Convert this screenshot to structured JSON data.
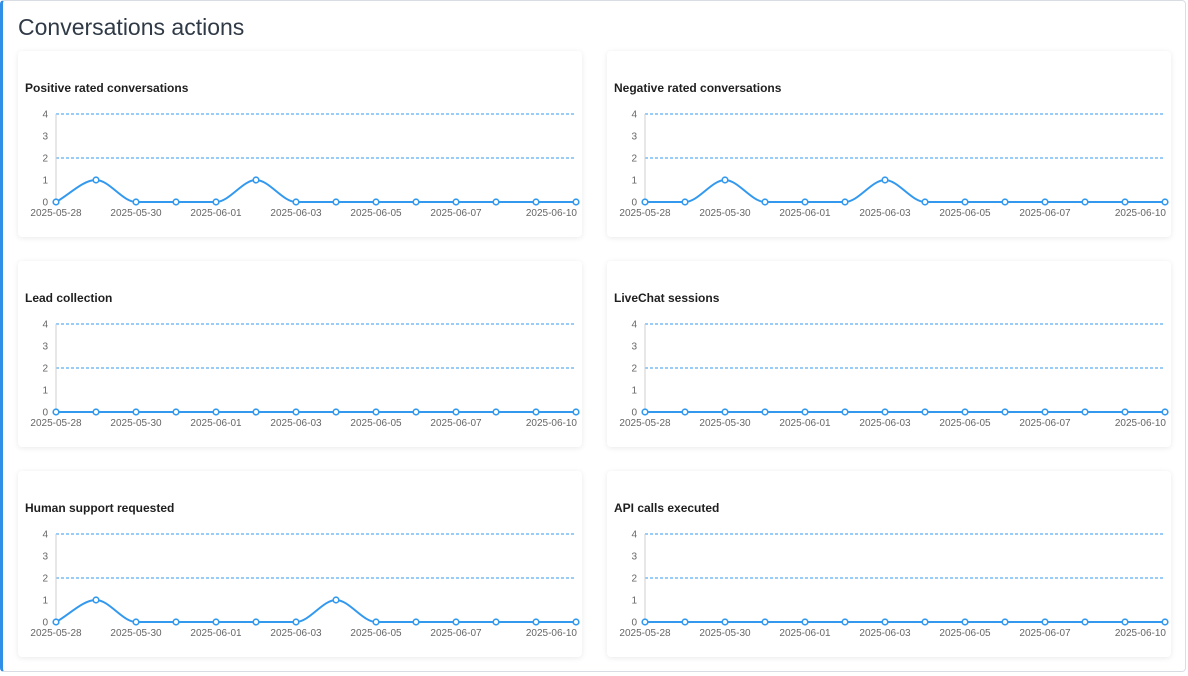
{
  "page": {
    "title": "Conversations actions"
  },
  "colors": {
    "accent": "#2f8fe6",
    "line": "#3399ee",
    "grid": "#3399ee"
  },
  "chart_data": [
    {
      "type": "line",
      "title": "Positive rated conversations",
      "x": [
        "2025-05-28",
        "2025-05-29",
        "2025-05-30",
        "2025-05-31",
        "2025-06-01",
        "2025-06-02",
        "2025-06-03",
        "2025-06-04",
        "2025-06-05",
        "2025-06-06",
        "2025-06-07",
        "2025-06-08",
        "2025-06-09",
        "2025-06-10"
      ],
      "x_tick_labels": [
        "2025-05-28",
        "2025-05-30",
        "2025-06-01",
        "2025-06-03",
        "2025-06-05",
        "2025-06-07",
        "2025-06-10"
      ],
      "y_ticks": [
        0,
        1,
        2,
        3,
        4
      ],
      "ylim": [
        0,
        4
      ],
      "gridlines_y": [
        2,
        4
      ],
      "values": [
        0,
        1,
        0,
        0,
        0,
        1,
        0,
        0,
        0,
        0,
        0,
        0,
        0,
        0
      ]
    },
    {
      "type": "line",
      "title": "Negative rated conversations",
      "x": [
        "2025-05-28",
        "2025-05-29",
        "2025-05-30",
        "2025-05-31",
        "2025-06-01",
        "2025-06-02",
        "2025-06-03",
        "2025-06-04",
        "2025-06-05",
        "2025-06-06",
        "2025-06-07",
        "2025-06-08",
        "2025-06-09",
        "2025-06-10"
      ],
      "x_tick_labels": [
        "2025-05-28",
        "2025-05-30",
        "2025-06-01",
        "2025-06-03",
        "2025-06-05",
        "2025-06-07",
        "2025-06-10"
      ],
      "y_ticks": [
        0,
        1,
        2,
        3,
        4
      ],
      "ylim": [
        0,
        4
      ],
      "gridlines_y": [
        2,
        4
      ],
      "values": [
        0,
        0,
        1,
        0,
        0,
        0,
        1,
        0,
        0,
        0,
        0,
        0,
        0,
        0
      ]
    },
    {
      "type": "line",
      "title": "Lead collection",
      "x": [
        "2025-05-28",
        "2025-05-29",
        "2025-05-30",
        "2025-05-31",
        "2025-06-01",
        "2025-06-02",
        "2025-06-03",
        "2025-06-04",
        "2025-06-05",
        "2025-06-06",
        "2025-06-07",
        "2025-06-08",
        "2025-06-09",
        "2025-06-10"
      ],
      "x_tick_labels": [
        "2025-05-28",
        "2025-05-30",
        "2025-06-01",
        "2025-06-03",
        "2025-06-05",
        "2025-06-07",
        "2025-06-10"
      ],
      "y_ticks": [
        0,
        1,
        2,
        3,
        4
      ],
      "ylim": [
        0,
        4
      ],
      "gridlines_y": [
        2,
        4
      ],
      "values": [
        0,
        0,
        0,
        0,
        0,
        0,
        0,
        0,
        0,
        0,
        0,
        0,
        0,
        0
      ]
    },
    {
      "type": "line",
      "title": "LiveChat sessions",
      "x": [
        "2025-05-28",
        "2025-05-29",
        "2025-05-30",
        "2025-05-31",
        "2025-06-01",
        "2025-06-02",
        "2025-06-03",
        "2025-06-04",
        "2025-06-05",
        "2025-06-06",
        "2025-06-07",
        "2025-06-08",
        "2025-06-09",
        "2025-06-10"
      ],
      "x_tick_labels": [
        "2025-05-28",
        "2025-05-30",
        "2025-06-01",
        "2025-06-03",
        "2025-06-05",
        "2025-06-07",
        "2025-06-10"
      ],
      "y_ticks": [
        0,
        1,
        2,
        3,
        4
      ],
      "ylim": [
        0,
        4
      ],
      "gridlines_y": [
        2,
        4
      ],
      "values": [
        0,
        0,
        0,
        0,
        0,
        0,
        0,
        0,
        0,
        0,
        0,
        0,
        0,
        0
      ]
    },
    {
      "type": "line",
      "title": "Human support requested",
      "x": [
        "2025-05-28",
        "2025-05-29",
        "2025-05-30",
        "2025-05-31",
        "2025-06-01",
        "2025-06-02",
        "2025-06-03",
        "2025-06-04",
        "2025-06-05",
        "2025-06-06",
        "2025-06-07",
        "2025-06-08",
        "2025-06-09",
        "2025-06-10"
      ],
      "x_tick_labels": [
        "2025-05-28",
        "2025-05-30",
        "2025-06-01",
        "2025-06-03",
        "2025-06-05",
        "2025-06-07",
        "2025-06-10"
      ],
      "y_ticks": [
        0,
        1,
        2,
        3,
        4
      ],
      "ylim": [
        0,
        4
      ],
      "gridlines_y": [
        2,
        4
      ],
      "values": [
        0,
        1,
        0,
        0,
        0,
        0,
        0,
        1,
        0,
        0,
        0,
        0,
        0,
        0
      ]
    },
    {
      "type": "line",
      "title": "API calls executed",
      "x": [
        "2025-05-28",
        "2025-05-29",
        "2025-05-30",
        "2025-05-31",
        "2025-06-01",
        "2025-06-02",
        "2025-06-03",
        "2025-06-04",
        "2025-06-05",
        "2025-06-06",
        "2025-06-07",
        "2025-06-08",
        "2025-06-09",
        "2025-06-10"
      ],
      "x_tick_labels": [
        "2025-05-28",
        "2025-05-30",
        "2025-06-01",
        "2025-06-03",
        "2025-06-05",
        "2025-06-07",
        "2025-06-10"
      ],
      "y_ticks": [
        0,
        1,
        2,
        3,
        4
      ],
      "ylim": [
        0,
        4
      ],
      "gridlines_y": [
        2,
        4
      ],
      "values": [
        0,
        0,
        0,
        0,
        0,
        0,
        0,
        0,
        0,
        0,
        0,
        0,
        0,
        0
      ]
    }
  ]
}
